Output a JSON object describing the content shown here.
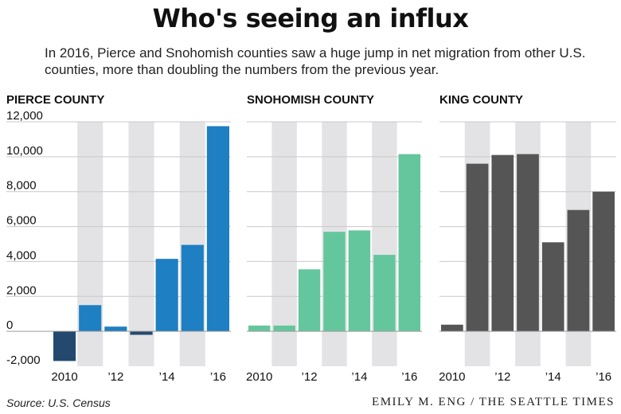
{
  "title": "Who's seeing an influx",
  "subtitle": "In 2016, Pierce and Snohomish counties saw a huge jump in net migration from other U.S. counties, more than doubling the numbers from the previous year.",
  "source": "Source: U.S. Census",
  "credit": "EMILY M. ENG / THE SEATTLE TIMES",
  "colors": {
    "shade": "#e3e3e5",
    "gridline": "#c9c9c9",
    "zeroline": "#9a9a9a"
  },
  "chart_data": [
    {
      "type": "bar",
      "title": "PIERCE COUNTY",
      "x": [
        2010,
        2011,
        2012,
        2013,
        2014,
        2015,
        2016
      ],
      "values": [
        -1700,
        1500,
        270,
        -200,
        4150,
        4950,
        11750
      ],
      "colors": [
        "#234a6e",
        "#1e7fc2",
        "#1e7fc2",
        "#234a6e",
        "#1e7fc2",
        "#1e7fc2",
        "#1e7fc2"
      ],
      "xticks": [
        "2010",
        "’12",
        "’14",
        "’16"
      ],
      "xtick_years": [
        2010,
        2012,
        2014,
        2016
      ],
      "yticks": [
        "12,000",
        "10,000",
        "8,000",
        "6,000",
        "4,000",
        "2,000",
        "0",
        "-2,000"
      ],
      "ytick_values": [
        12000,
        10000,
        8000,
        6000,
        4000,
        2000,
        0,
        -2000
      ],
      "ylim": [
        -2000,
        12000
      ],
      "shaded_years": [
        2011,
        2013,
        2015
      ],
      "grid": true
    },
    {
      "type": "bar",
      "title": "SNOHOMISH COUNTY",
      "x": [
        2010,
        2011,
        2012,
        2013,
        2014,
        2015,
        2016
      ],
      "values": [
        330,
        330,
        3550,
        5700,
        5780,
        4380,
        10150
      ],
      "colors": [
        "#64c69c",
        "#64c69c",
        "#64c69c",
        "#64c69c",
        "#64c69c",
        "#64c69c",
        "#64c69c"
      ],
      "xticks": [
        "2010",
        "’12",
        "’14",
        "’16"
      ],
      "xtick_years": [
        2010,
        2012,
        2014,
        2016
      ],
      "ylim": [
        -2000,
        12000
      ],
      "shaded_years": [
        2011,
        2013,
        2015
      ],
      "grid": true
    },
    {
      "type": "bar",
      "title": "KING COUNTY",
      "x": [
        2010,
        2011,
        2012,
        2013,
        2014,
        2015,
        2016
      ],
      "values": [
        380,
        9600,
        10100,
        10150,
        5100,
        6950,
        8000
      ],
      "colors": [
        "#555555",
        "#555555",
        "#555555",
        "#555555",
        "#555555",
        "#555555",
        "#555555"
      ],
      "xticks": [
        "2010",
        "’12",
        "’14",
        "’16"
      ],
      "xtick_years": [
        2010,
        2012,
        2014,
        2016
      ],
      "ylim": [
        -2000,
        12000
      ],
      "shaded_years": [
        2011,
        2013,
        2015
      ],
      "grid": true
    }
  ]
}
